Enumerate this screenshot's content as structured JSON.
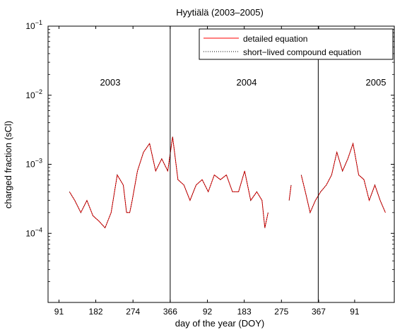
{
  "chart_data": {
    "type": "line",
    "title": "Hyytiälä (2003–2005)",
    "xlabel": "day of the year (DOY)",
    "ylabel": "charged fraction (sCl)",
    "y_scale": "log",
    "ylim": [
      1e-05,
      0.1
    ],
    "x_ticks": [
      "91",
      "182",
      "274",
      "366",
      "92",
      "183",
      "275",
      "367",
      "91"
    ],
    "y_ticks": [
      {
        "base": "10",
        "exp": "−1"
      },
      {
        "base": "10",
        "exp": "−2"
      },
      {
        "base": "10",
        "exp": "−3"
      },
      {
        "base": "10",
        "exp": "−4"
      }
    ],
    "year_labels": [
      "2003",
      "2004",
      "2005"
    ],
    "legend": {
      "position": "top-right",
      "entries": [
        {
          "label": "detailed equation",
          "color": "#ff0000",
          "style": "solid"
        },
        {
          "label": "short−lived compound equation",
          "color": "#000000",
          "style": "dotted"
        }
      ]
    },
    "year_separators_day_index": [
      366,
      732
    ],
    "series": [
      {
        "name": "detailed equation",
        "color": "#ff0000",
        "segments": [
          {
            "x": [
              117,
              130,
              145,
              160,
              175,
              190,
              205,
              220,
              235,
              250,
              258,
              266,
              272,
              285,
              300,
              315,
              330,
              345,
              360,
              372,
              385,
              400,
              415,
              430,
              445,
              460,
              475,
              490,
              505,
              520,
              535,
              550,
              565,
              580,
              593,
              600,
              608
            ],
            "y": [
              0.0004,
              0.0003,
              0.0002,
              0.0003,
              0.00018,
              0.00015,
              0.00012,
              0.0002,
              0.0007,
              0.0005,
              0.0002,
              0.0002,
              0.0003,
              0.0008,
              0.0015,
              0.002,
              0.0008,
              0.0012,
              0.0008,
              0.0025,
              0.0006,
              0.0005,
              0.0003,
              0.0005,
              0.0006,
              0.0004,
              0.0007,
              0.0006,
              0.0007,
              0.0004,
              0.0004,
              0.0008,
              0.0003,
              0.0004,
              0.0003,
              0.00012,
              0.0002
            ]
          },
          {
            "x": [
              660,
              665
            ],
            "y": [
              0.0003,
              0.0005
            ]
          },
          {
            "x": [
              690,
              700,
              712,
              725,
              738,
              752,
              765,
              778,
              792,
              805,
              818,
              832,
              845,
              858,
              872,
              885,
              898
            ],
            "y": [
              0.0007,
              0.0004,
              0.0002,
              0.0003,
              0.0004,
              0.0005,
              0.0007,
              0.0015,
              0.0008,
              0.0012,
              0.002,
              0.0007,
              0.0006,
              0.0003,
              0.0005,
              0.0003,
              0.0002
            ]
          }
        ]
      },
      {
        "name": "short−lived compound equation",
        "color": "#000000",
        "segments": [
          {
            "x": [
              117,
              130,
              145,
              160,
              175,
              190,
              205,
              220,
              235,
              250,
              258,
              266,
              272,
              285,
              300,
              315,
              330,
              345,
              360,
              372,
              385,
              400,
              415,
              430,
              445,
              460,
              475,
              490,
              505,
              520,
              535,
              550,
              565,
              580,
              593,
              600,
              608
            ],
            "y": [
              0.0004,
              0.0003,
              0.0002,
              0.0003,
              0.00018,
              0.00015,
              0.00012,
              0.0002,
              0.0007,
              0.0005,
              0.0002,
              0.0002,
              0.0003,
              0.0008,
              0.0015,
              0.002,
              0.0008,
              0.0012,
              0.0008,
              0.0025,
              0.0006,
              0.0005,
              0.0003,
              0.0005,
              0.0006,
              0.0004,
              0.0007,
              0.0006,
              0.0007,
              0.0004,
              0.0004,
              0.0008,
              0.0003,
              0.0004,
              0.0003,
              0.00012,
              0.0002
            ]
          },
          {
            "x": [
              660,
              665
            ],
            "y": [
              0.0003,
              0.0005
            ]
          },
          {
            "x": [
              690,
              700,
              712,
              725,
              738,
              752,
              765,
              778,
              792,
              805,
              818,
              832,
              845,
              858,
              872,
              885,
              898
            ],
            "y": [
              0.0007,
              0.0004,
              0.0002,
              0.0003,
              0.0004,
              0.0005,
              0.0007,
              0.0015,
              0.0008,
              0.0012,
              0.002,
              0.0007,
              0.0006,
              0.0003,
              0.0005,
              0.0003,
              0.0002
            ]
          }
        ]
      }
    ]
  }
}
